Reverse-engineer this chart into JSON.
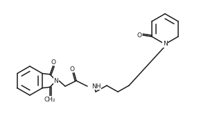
{
  "bg_color": "#ffffff",
  "line_color": "#1a1a1a",
  "line_width": 1.1,
  "font_size": 6.5,
  "figsize": [
    3.0,
    2.0
  ],
  "dpi": 100,
  "xlim": [
    0,
    300
  ],
  "ylim": [
    0,
    200
  ]
}
